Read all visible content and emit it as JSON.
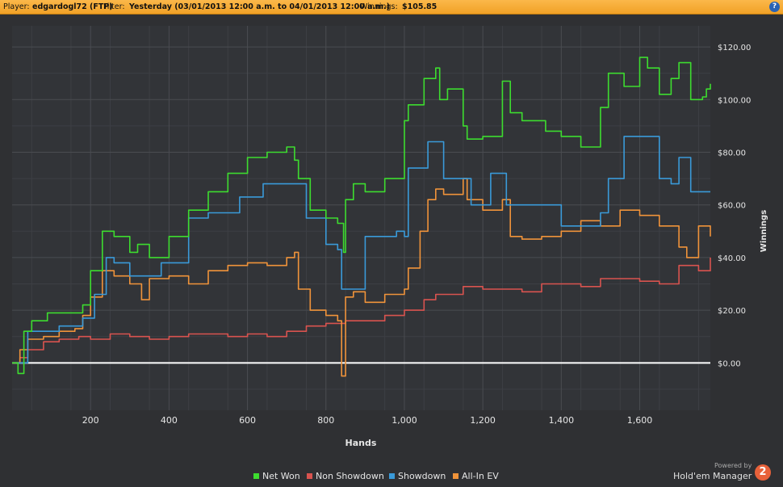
{
  "header": {
    "player_label": "Player:",
    "player_value": "edgardogl72 (FTP)",
    "filter_label": "Filter:",
    "filter_value": "Yesterday (03/01/2013 12:00 a.m. to 04/01/2013 12:00 a.m.)",
    "winnings_label": "Winnings:",
    "winnings_value": "$105.85",
    "help_glyph": "?"
  },
  "chart_data": {
    "type": "line",
    "xlabel": "Hands",
    "ylabel": "Winnings",
    "xlim": [
      0,
      1780
    ],
    "ylim": [
      -18,
      128
    ],
    "x_ticks": [
      200,
      400,
      600,
      800,
      1000,
      1200,
      1400,
      1600
    ],
    "x_tick_labels": [
      "200",
      "400",
      "600",
      "800",
      "1,000",
      "1,200",
      "1,400",
      "1,600"
    ],
    "y_ticks": [
      0,
      20,
      40,
      60,
      80,
      100,
      120
    ],
    "y_tick_labels": [
      "$0.00",
      "$20.00",
      "$40.00",
      "$60.00",
      "$80.00",
      "$100.00",
      "$120.00"
    ],
    "grid": true,
    "legend_position": "bottom",
    "series": [
      {
        "name": "Net Won",
        "color": "#3ddc2f",
        "x": [
          0,
          15,
          30,
          50,
          90,
          180,
          200,
          230,
          260,
          300,
          320,
          350,
          400,
          450,
          500,
          550,
          600,
          650,
          700,
          720,
          730,
          760,
          800,
          830,
          845,
          850,
          870,
          900,
          950,
          1000,
          1010,
          1050,
          1080,
          1090,
          1110,
          1150,
          1160,
          1200,
          1250,
          1270,
          1300,
          1360,
          1400,
          1450,
          1500,
          1520,
          1560,
          1600,
          1620,
          1650,
          1680,
          1700,
          1730,
          1760,
          1770,
          1780
        ],
        "y": [
          0,
          -4,
          12,
          16,
          19,
          22,
          35,
          50,
          48,
          42,
          45,
          40,
          48,
          58,
          65,
          72,
          78,
          80,
          82,
          77,
          70,
          58,
          55,
          53,
          42,
          62,
          68,
          65,
          70,
          92,
          98,
          108,
          112,
          100,
          104,
          90,
          85,
          86,
          107,
          95,
          92,
          88,
          86,
          82,
          97,
          110,
          105,
          116,
          112,
          102,
          108,
          114,
          100,
          101,
          104,
          106
        ]
      },
      {
        "name": "Non Showdown",
        "color": "#d9534f",
        "x": [
          0,
          20,
          40,
          80,
          120,
          170,
          200,
          250,
          300,
          350,
          400,
          450,
          500,
          550,
          600,
          650,
          700,
          750,
          800,
          850,
          900,
          950,
          1000,
          1050,
          1080,
          1150,
          1200,
          1250,
          1300,
          1350,
          1400,
          1450,
          1500,
          1550,
          1600,
          1650,
          1700,
          1730,
          1750,
          1780
        ],
        "y": [
          0,
          2,
          5,
          8,
          9,
          10,
          9,
          11,
          10,
          9,
          10,
          11,
          11,
          10,
          11,
          10,
          12,
          14,
          15,
          16,
          16,
          18,
          20,
          24,
          26,
          29,
          28,
          28,
          27,
          30,
          30,
          29,
          32,
          32,
          31,
          30,
          37,
          37,
          35,
          40
        ]
      },
      {
        "name": "Showdown",
        "color": "#3a9ad9",
        "x": [
          0,
          20,
          40,
          100,
          120,
          160,
          180,
          210,
          240,
          260,
          300,
          320,
          380,
          400,
          450,
          500,
          580,
          640,
          720,
          750,
          800,
          830,
          840,
          860,
          900,
          980,
          1000,
          1010,
          1040,
          1060,
          1080,
          1100,
          1150,
          1170,
          1200,
          1220,
          1260,
          1300,
          1350,
          1400,
          1450,
          1500,
          1520,
          1560,
          1620,
          1650,
          1680,
          1700,
          1730,
          1780
        ],
        "y": [
          0,
          0,
          12,
          12,
          14,
          14,
          17,
          26,
          40,
          38,
          33,
          33,
          38,
          38,
          55,
          57,
          63,
          68,
          68,
          55,
          45,
          43,
          28,
          28,
          48,
          50,
          48,
          74,
          74,
          84,
          84,
          70,
          70,
          60,
          60,
          72,
          60,
          60,
          60,
          52,
          52,
          57,
          70,
          86,
          86,
          70,
          68,
          78,
          65,
          65
        ]
      },
      {
        "name": "All-In EV",
        "color": "#f0933a",
        "x": [
          0,
          20,
          40,
          80,
          120,
          160,
          180,
          200,
          230,
          260,
          300,
          330,
          350,
          400,
          450,
          500,
          550,
          600,
          650,
          700,
          720,
          730,
          760,
          800,
          830,
          840,
          850,
          870,
          900,
          950,
          1000,
          1010,
          1040,
          1060,
          1080,
          1100,
          1150,
          1160,
          1200,
          1250,
          1270,
          1300,
          1350,
          1400,
          1450,
          1500,
          1550,
          1600,
          1650,
          1700,
          1720,
          1750,
          1780
        ],
        "y": [
          0,
          5,
          9,
          10,
          12,
          13,
          18,
          25,
          35,
          33,
          30,
          24,
          32,
          33,
          30,
          35,
          37,
          38,
          37,
          40,
          42,
          28,
          20,
          18,
          16,
          -5,
          25,
          27,
          23,
          26,
          28,
          36,
          50,
          62,
          66,
          64,
          70,
          62,
          58,
          62,
          48,
          47,
          48,
          50,
          54,
          52,
          58,
          56,
          52,
          44,
          40,
          52,
          48
        ]
      }
    ]
  },
  "legend": [
    {
      "label": "Net Won",
      "color": "#3ddc2f"
    },
    {
      "label": "Non Showdown",
      "color": "#d9534f"
    },
    {
      "label": "Showdown",
      "color": "#3a9ad9"
    },
    {
      "label": "All-In EV",
      "color": "#f0933a"
    }
  ],
  "branding": {
    "powered_by": "Powered by",
    "product": "Hold'em Manager",
    "badge": "2"
  }
}
